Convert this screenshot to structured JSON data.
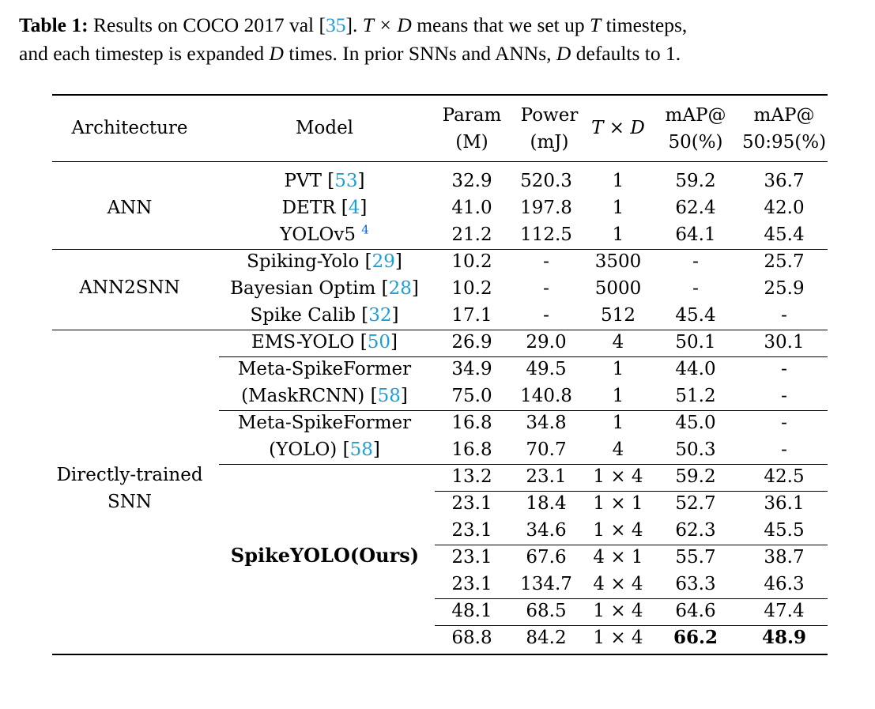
{
  "caption": {
    "label": "Table 1:",
    "text_a": " Results on COCO 2017 val [",
    "cite": "35",
    "text_b": "]. ",
    "math1": "T × D",
    "text_c": " means that we set up ",
    "math2": "T",
    "text_d": " timesteps,",
    "line2_a": "and each timestep is expanded ",
    "math3": "D",
    "line2_b": " times. In prior SNNs and ANNs, ",
    "math4": "D",
    "line2_c": " defaults to 1."
  },
  "headers": {
    "architecture": "Architecture",
    "model": "Model",
    "param_1": "Param",
    "param_2": "(M)",
    "power_1": "Power",
    "power_2": "(mJ)",
    "txd": "T × D",
    "map50_1": "mAP@",
    "map50_2": "50(%)",
    "map5095_1": "mAP@",
    "map5095_2": "50:95(%)"
  },
  "groups": {
    "ann": "ANN",
    "ann2snn": "ANN2SNN",
    "direct_1": "Directly-trained",
    "direct_2": "SNN"
  },
  "models": {
    "pvt": "PVT [",
    "pvt_cite": "53",
    "detr": "DETR [",
    "detr_cite": "4",
    "yolov5": "YOLOv5 ",
    "yolov5_sup": "4",
    "spiking_yolo": "Spiking-Yolo [",
    "spiking_yolo_cite": "29",
    "bayesian": "Bayesian Optim [",
    "bayesian_cite": "28",
    "spike_calib": "Spike Calib [",
    "spike_calib_cite": "32",
    "ems_yolo": "EMS-YOLO [",
    "ems_yolo_cite": "50",
    "meta1_a": "Meta-SpikeFormer",
    "meta1_b": "(MaskRCNN) [",
    "meta1_cite": "58",
    "meta2_a": "Meta-SpikeFormer",
    "meta2_b": "(YOLO) [",
    "meta2_cite": "58",
    "spikeyolo": "SpikeYOLO(Ours)",
    "close": "]"
  },
  "rows": [
    [
      "32.9",
      "520.3",
      "1",
      "59.2",
      "36.7"
    ],
    [
      "41.0",
      "197.8",
      "1",
      "62.4",
      "42.0"
    ],
    [
      "21.2",
      "112.5",
      "1",
      "64.1",
      "45.4"
    ],
    [
      "10.2",
      "-",
      "3500",
      "-",
      "25.7"
    ],
    [
      "10.2",
      "-",
      "5000",
      "-",
      "25.9"
    ],
    [
      "17.1",
      "-",
      "512",
      "45.4",
      "-"
    ],
    [
      "26.9",
      "29.0",
      "4",
      "50.1",
      "30.1"
    ],
    [
      "34.9",
      "49.5",
      "1",
      "44.0",
      "-"
    ],
    [
      "75.0",
      "140.8",
      "1",
      "51.2",
      "-"
    ],
    [
      "16.8",
      "34.8",
      "1",
      "45.0",
      "-"
    ],
    [
      "16.8",
      "70.7",
      "4",
      "50.3",
      "-"
    ],
    [
      "13.2",
      "23.1",
      "1 × 4",
      "59.2",
      "42.5"
    ],
    [
      "23.1",
      "18.4",
      "1 × 1",
      "52.7",
      "36.1"
    ],
    [
      "23.1",
      "34.6",
      "1 × 4",
      "62.3",
      "45.5"
    ],
    [
      "23.1",
      "67.6",
      "4 × 1",
      "55.7",
      "38.7"
    ],
    [
      "23.1",
      "134.7",
      "4 × 4",
      "63.3",
      "46.3"
    ],
    [
      "48.1",
      "68.5",
      "1 × 4",
      "64.6",
      "47.4"
    ],
    [
      "68.8",
      "84.2",
      "1 × 4",
      "66.2",
      "48.9"
    ]
  ]
}
